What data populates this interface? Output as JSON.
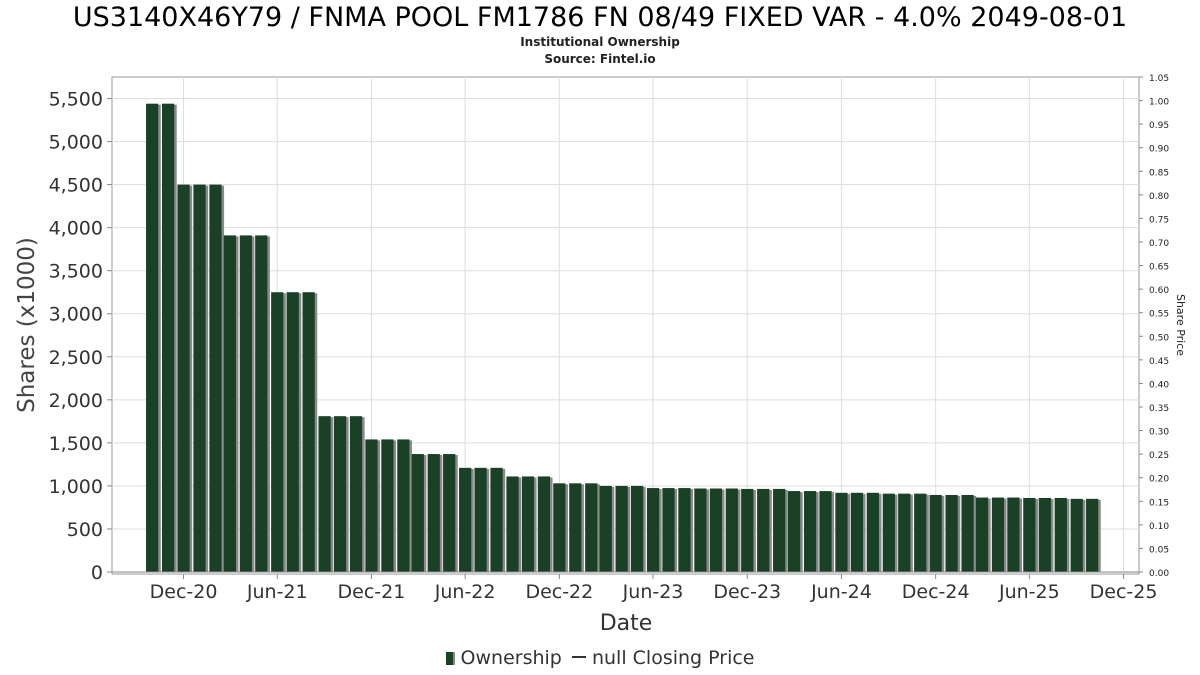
{
  "header": {
    "title": "US3140X46Y79 / FNMA POOL FM1786 FN 08/49 FIXED VAR - 4.0% 2049-08-01",
    "subtitle": "Institutional Ownership",
    "source": "Source: Fintel.io"
  },
  "legend": {
    "ownership_label": "Ownership",
    "price_label": "null Closing Price"
  },
  "colors": {
    "bar": "#1a4025",
    "bar_shadow": "#8a8a8a",
    "grid": "#dddddd",
    "axis": "#888888"
  },
  "chart_data": {
    "type": "bar",
    "title": "US3140X46Y79 / FNMA POOL FM1786 FN 08/49 FIXED VAR - 4.0% 2049-08-01",
    "xlabel": "Date",
    "ylabel": "Shares (x1000)",
    "y2label": "Share Price",
    "ylim": [
      0,
      5750
    ],
    "y2lim": [
      0,
      1.05
    ],
    "x_range": [
      "2020-07-15",
      "2025-12-31"
    ],
    "yticks": [
      "0",
      "500",
      "1,000",
      "1,500",
      "2,000",
      "2,500",
      "3,000",
      "3,500",
      "4,000",
      "4,500",
      "5,000",
      "5,500"
    ],
    "y2ticks": [
      "0.00",
      "0.05",
      "0.10",
      "0.15",
      "0.20",
      "0.25",
      "0.30",
      "0.35",
      "0.40",
      "0.45",
      "0.50",
      "0.55",
      "0.60",
      "0.65",
      "0.70",
      "0.75",
      "0.80",
      "0.85",
      "0.90",
      "0.95",
      "1.00",
      "1.05"
    ],
    "xticks": [
      {
        "date": "2020-12-01",
        "label": "Dec-20"
      },
      {
        "date": "2021-06-01",
        "label": "Jun-21"
      },
      {
        "date": "2021-12-01",
        "label": "Dec-21"
      },
      {
        "date": "2022-06-01",
        "label": "Jun-22"
      },
      {
        "date": "2022-12-01",
        "label": "Dec-22"
      },
      {
        "date": "2023-06-01",
        "label": "Jun-23"
      },
      {
        "date": "2023-12-01",
        "label": "Dec-23"
      },
      {
        "date": "2024-06-01",
        "label": "Jun-24"
      },
      {
        "date": "2024-12-01",
        "label": "Dec-24"
      },
      {
        "date": "2025-06-01",
        "label": "Jun-25"
      },
      {
        "date": "2025-12-01",
        "label": "Dec-25"
      }
    ],
    "grid": true,
    "legend_position": "bottom-center",
    "series": [
      {
        "name": "Ownership",
        "dates": [
          "2020-10-01",
          "2020-11-01",
          "2020-12-01",
          "2021-01-01",
          "2021-02-01",
          "2021-03-01",
          "2021-04-01",
          "2021-05-01",
          "2021-06-01",
          "2021-07-01",
          "2021-08-01",
          "2021-09-01",
          "2021-10-01",
          "2021-11-01",
          "2021-12-01",
          "2022-01-01",
          "2022-02-01",
          "2022-03-01",
          "2022-04-01",
          "2022-05-01",
          "2022-06-01",
          "2022-07-01",
          "2022-08-01",
          "2022-09-01",
          "2022-10-01",
          "2022-11-01",
          "2022-12-01",
          "2023-01-01",
          "2023-02-01",
          "2023-03-01",
          "2023-04-01",
          "2023-05-01",
          "2023-06-01",
          "2023-07-01",
          "2023-08-01",
          "2023-09-01",
          "2023-10-01",
          "2023-11-01",
          "2023-12-01",
          "2024-01-01",
          "2024-02-01",
          "2024-03-01",
          "2024-04-01",
          "2024-05-01",
          "2024-06-01",
          "2024-07-01",
          "2024-08-01",
          "2024-09-01",
          "2024-10-01",
          "2024-11-01",
          "2024-12-01",
          "2025-01-01",
          "2025-02-01",
          "2025-03-01",
          "2025-04-01",
          "2025-05-01",
          "2025-06-01",
          "2025-07-01",
          "2025-08-01",
          "2025-09-01",
          "2025-10-01"
        ],
        "values": [
          5440,
          5440,
          4500,
          4500,
          4500,
          3910,
          3910,
          3910,
          3250,
          3250,
          3250,
          1810,
          1810,
          1810,
          1540,
          1540,
          1540,
          1370,
          1370,
          1370,
          1210,
          1210,
          1210,
          1110,
          1110,
          1110,
          1030,
          1030,
          1030,
          1000,
          1000,
          1000,
          975,
          975,
          975,
          970,
          970,
          970,
          965,
          965,
          965,
          940,
          940,
          940,
          920,
          920,
          920,
          910,
          910,
          910,
          895,
          895,
          895,
          865,
          865,
          865,
          860,
          860,
          860,
          850,
          850
        ]
      }
    ]
  }
}
